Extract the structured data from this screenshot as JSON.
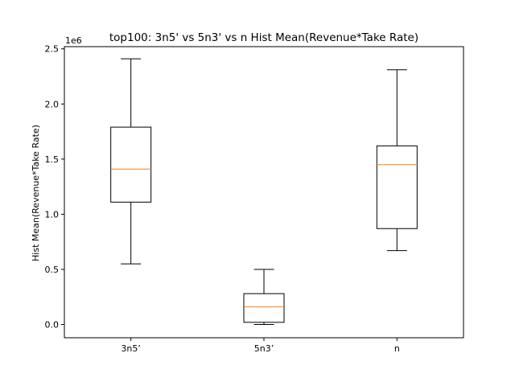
{
  "chart_data": {
    "type": "box",
    "title": "top100: 3n5' vs 5n3' vs n Hist Mean(Revenue*Take Rate)",
    "xlabel": "",
    "ylabel": "Hist Mean(Revenue*Take Rate)",
    "y_offset_label": "1e6",
    "ylim": [
      -0.12,
      2.52
    ],
    "yticks": [
      0.0,
      0.5,
      1.0,
      1.5,
      2.0,
      2.5
    ],
    "ytick_labels": [
      "0.0",
      "0.5",
      "1.0",
      "1.5",
      "2.0",
      "2.5"
    ],
    "grid": false,
    "categories": [
      "3n5’",
      "5n3’",
      "n"
    ],
    "boxes": [
      {
        "whisker_low": 0.55,
        "q1": 1.11,
        "median": 1.41,
        "q3": 1.79,
        "whisker_high": 2.41
      },
      {
        "whisker_low": 0.0,
        "q1": 0.02,
        "median": 0.16,
        "q3": 0.28,
        "whisker_high": 0.5
      },
      {
        "whisker_low": 0.67,
        "q1": 0.87,
        "median": 1.45,
        "q3": 1.62,
        "whisker_high": 2.31
      }
    ],
    "colors": {
      "box": "#000000",
      "median": "#ff7f0e",
      "axes": "#000000",
      "background": "#ffffff"
    }
  }
}
